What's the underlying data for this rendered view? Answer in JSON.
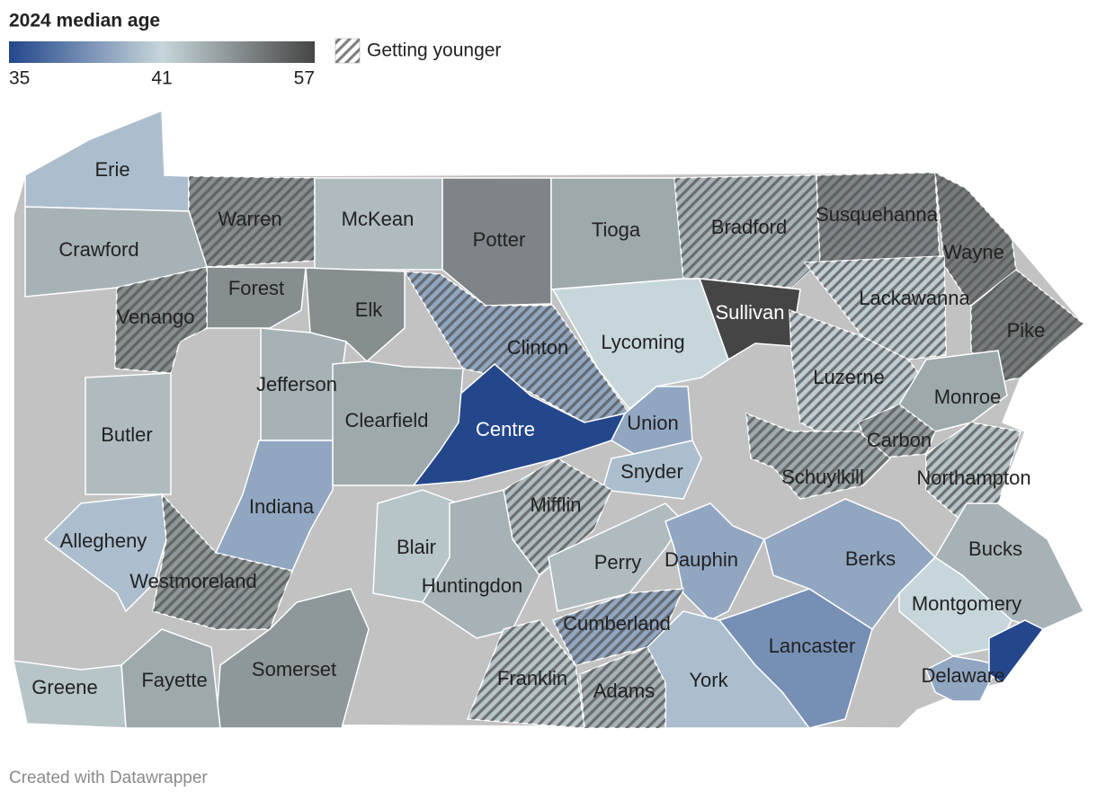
{
  "title": "2024 median age",
  "legend": {
    "ticks": [
      35,
      41,
      57
    ],
    "colors": [
      "#24478c",
      "#c7d6db",
      "#454545"
    ],
    "hatch_label": "Getting younger"
  },
  "counties": [
    {
      "name": "Erie",
      "median_age": 40,
      "getting_younger": false
    },
    {
      "name": "Warren",
      "median_age": 49,
      "getting_younger": true
    },
    {
      "name": "McKean",
      "median_age": 44,
      "getting_younger": false
    },
    {
      "name": "Potter",
      "median_age": 50,
      "getting_younger": false
    },
    {
      "name": "Tioga",
      "median_age": 46,
      "getting_younger": false
    },
    {
      "name": "Bradford",
      "median_age": 45,
      "getting_younger": true
    },
    {
      "name": "Susquehanna",
      "median_age": 50,
      "getting_younger": true
    },
    {
      "name": "Wayne",
      "median_age": 51,
      "getting_younger": true
    },
    {
      "name": "Crawford",
      "median_age": 45,
      "getting_younger": false
    },
    {
      "name": "Forest",
      "median_age": 49,
      "getting_younger": false
    },
    {
      "name": "Venango",
      "median_age": 49,
      "getting_younger": true
    },
    {
      "name": "Elk",
      "median_age": 49,
      "getting_younger": false
    },
    {
      "name": "Sullivan",
      "median_age": 57,
      "getting_younger": false
    },
    {
      "name": "Lackawanna",
      "median_age": 42,
      "getting_younger": true
    },
    {
      "name": "Pike",
      "median_age": 51,
      "getting_younger": true
    },
    {
      "name": "Clinton",
      "median_age": 39,
      "getting_younger": true
    },
    {
      "name": "Centre",
      "median_age": 35,
      "getting_younger": false
    },
    {
      "name": "Lycoming",
      "median_age": 41,
      "getting_younger": false
    },
    {
      "name": "Union",
      "median_age": 39,
      "getting_younger": false
    },
    {
      "name": "Snyder",
      "median_age": 40,
      "getting_younger": false
    },
    {
      "name": "Luzerne",
      "median_age": 42,
      "getting_younger": true
    },
    {
      "name": "Monroe",
      "median_age": 46,
      "getting_younger": false
    },
    {
      "name": "Carbon",
      "median_age": 47,
      "getting_younger": true
    },
    {
      "name": "Northampton",
      "median_age": 43,
      "getting_younger": true
    },
    {
      "name": "Schuylkill",
      "median_age": 46,
      "getting_younger": true
    },
    {
      "name": "Jefferson",
      "median_age": 45,
      "getting_younger": false
    },
    {
      "name": "Clearfield",
      "median_age": 46,
      "getting_younger": false
    },
    {
      "name": "Butler",
      "median_age": 44,
      "getting_younger": false
    },
    {
      "name": "Indiana",
      "median_age": 39,
      "getting_younger": false
    },
    {
      "name": "Mifflin",
      "median_age": 44,
      "getting_younger": true
    },
    {
      "name": "Allegheny",
      "median_age": 40,
      "getting_younger": false
    },
    {
      "name": "Westmoreland",
      "median_age": 48,
      "getting_younger": true
    },
    {
      "name": "Blair",
      "median_age": 43,
      "getting_younger": false
    },
    {
      "name": "Huntingdon",
      "median_age": 45,
      "getting_younger": false
    },
    {
      "name": "Perry",
      "median_age": 44,
      "getting_younger": false
    },
    {
      "name": "Dauphin",
      "median_age": 39,
      "getting_younger": false
    },
    {
      "name": "Berks",
      "median_age": 39,
      "getting_younger": false
    },
    {
      "name": "Bucks",
      "median_age": 45,
      "getting_younger": false
    },
    {
      "name": "Montgomery",
      "median_age": 41,
      "getting_younger": false
    },
    {
      "name": "Lancaster",
      "median_age": 38,
      "getting_younger": false
    },
    {
      "name": "Cumberland",
      "median_age": 39,
      "getting_younger": true
    },
    {
      "name": "York",
      "median_age": 40,
      "getting_younger": false
    },
    {
      "name": "Delaware",
      "median_age": 39,
      "getting_younger": false
    },
    {
      "name": null,
      "median_age": 35,
      "getting_younger": false
    },
    {
      "name": "Somerset",
      "median_age": 48,
      "getting_younger": false
    },
    {
      "name": "Fayette",
      "median_age": 46,
      "getting_younger": false
    },
    {
      "name": "Greene",
      "median_age": 43,
      "getting_younger": false
    },
    {
      "name": "Franklin",
      "median_age": 43,
      "getting_younger": true
    },
    {
      "name": "Adams",
      "median_age": 45,
      "getting_younger": true
    }
  ],
  "footer": "Created with Datawrapper"
}
